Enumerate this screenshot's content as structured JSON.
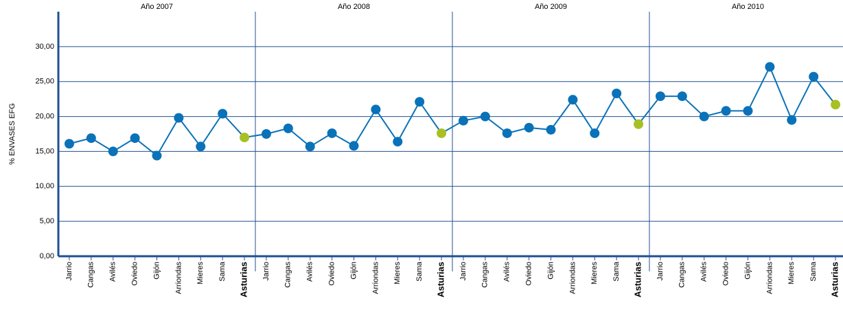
{
  "chart_data": {
    "type": "line",
    "y_label": "% ENVASES EFG",
    "color": "#0a72b8",
    "highlight_color": "#a8c023",
    "highlight_index": 8,
    "axis_color": "#1f4f93",
    "ylim": [
      0,
      35
    ],
    "yticks": [
      {
        "value": 0,
        "label": "0,00"
      },
      {
        "value": 5,
        "label": "5,00"
      },
      {
        "value": 10,
        "label": "10,00"
      },
      {
        "value": 15,
        "label": "15,00"
      },
      {
        "value": 20,
        "label": "20,00"
      },
      {
        "value": 25,
        "label": "25,00"
      },
      {
        "value": 30,
        "label": "30,00"
      }
    ],
    "grid": true,
    "panels": [
      {
        "title": "Año 2007",
        "categories": [
          "Jarrio",
          "Cangas",
          "Avilés",
          "Oviedo",
          "Gijón",
          "Arriondas",
          "Mieres",
          "Sama",
          "Asturias"
        ],
        "values": [
          16.1,
          16.9,
          15.0,
          16.9,
          14.4,
          19.8,
          15.7,
          20.4,
          17.0
        ]
      },
      {
        "title": "Año 2008",
        "categories": [
          "Jarrio",
          "Cangas",
          "Avilés",
          "Oviedo",
          "Gijón",
          "Arriondas",
          "Mieres",
          "Sama",
          "Asturias"
        ],
        "values": [
          17.5,
          18.3,
          15.7,
          17.6,
          15.8,
          21.0,
          16.4,
          22.1,
          17.6
        ]
      },
      {
        "title": "Año 2009",
        "categories": [
          "Jarrio",
          "Cangas",
          "Avilés",
          "Oviedo",
          "Gijón",
          "Arriondas",
          "Mieres",
          "Sama",
          "Asturias"
        ],
        "values": [
          19.4,
          20.0,
          17.6,
          18.4,
          18.1,
          22.4,
          17.6,
          23.3,
          18.9
        ]
      },
      {
        "title": "Año 2010",
        "categories": [
          "Jarrio",
          "Cangas",
          "Avilés",
          "Oviedo",
          "Gijón",
          "Arriondas",
          "Mieres",
          "Sama",
          "Asturias"
        ],
        "values": [
          22.9,
          22.9,
          20.0,
          20.8,
          20.8,
          27.1,
          19.5,
          25.7,
          21.7
        ]
      }
    ]
  }
}
